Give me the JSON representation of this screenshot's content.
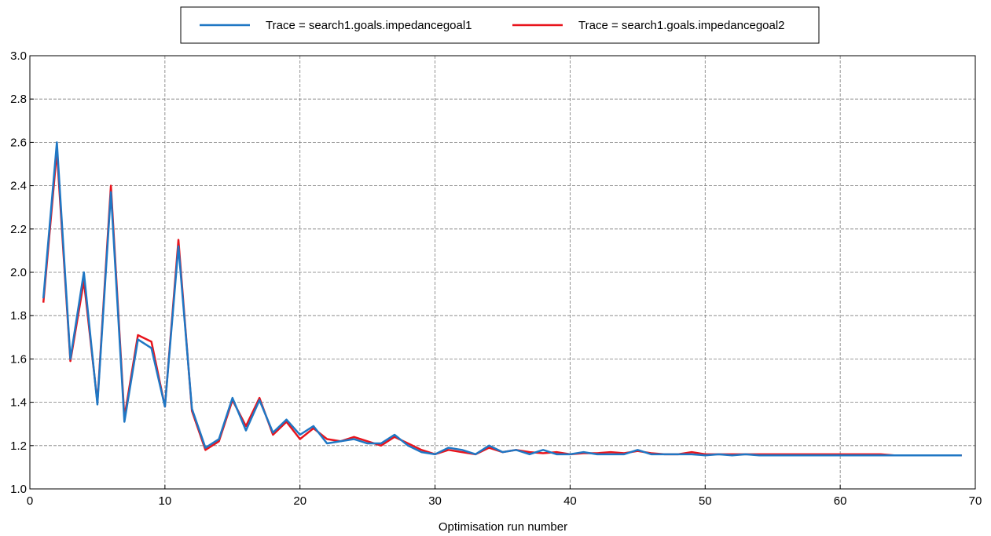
{
  "chart_data": {
    "type": "line",
    "title": "",
    "xlabel": "Optimisation run number",
    "ylabel": "",
    "xlim": [
      0,
      70
    ],
    "ylim": [
      1.0,
      3.0
    ],
    "xticks": [
      0,
      10,
      20,
      30,
      40,
      50,
      60,
      70
    ],
    "yticks": [
      1.0,
      1.2,
      1.4,
      1.6,
      1.8,
      2.0,
      2.2,
      2.4,
      2.6,
      2.8,
      3.0
    ],
    "xtick_labels": [
      "0",
      "10",
      "20",
      "30",
      "40",
      "50",
      "60",
      "70"
    ],
    "ytick_labels": [
      "1.0",
      "1.2",
      "1.4",
      "1.6",
      "1.8",
      "2.0",
      "2.2",
      "2.4",
      "2.6",
      "2.8",
      "3.0"
    ],
    "grid": true,
    "legend_position": "top-center",
    "x": [
      1,
      2,
      3,
      4,
      5,
      6,
      7,
      8,
      9,
      10,
      11,
      12,
      13,
      14,
      15,
      16,
      17,
      18,
      19,
      20,
      21,
      22,
      23,
      24,
      25,
      26,
      27,
      28,
      29,
      30,
      31,
      32,
      33,
      34,
      35,
      36,
      37,
      38,
      39,
      40,
      41,
      42,
      43,
      44,
      45,
      46,
      47,
      48,
      49,
      50,
      51,
      52,
      53,
      54,
      55,
      56,
      57,
      58,
      59,
      60,
      61,
      62,
      63,
      64,
      65,
      66,
      67,
      68,
      69
    ],
    "series": [
      {
        "name": "Trace = search1.goals.impedancegoal1",
        "color": "#1f77c4",
        "values": [
          1.88,
          2.6,
          1.6,
          2.0,
          1.39,
          2.37,
          1.31,
          1.69,
          1.65,
          1.38,
          2.12,
          1.37,
          1.19,
          1.23,
          1.42,
          1.27,
          1.41,
          1.26,
          1.32,
          1.25,
          1.29,
          1.21,
          1.22,
          1.23,
          1.21,
          1.21,
          1.25,
          1.2,
          1.17,
          1.16,
          1.19,
          1.18,
          1.16,
          1.2,
          1.17,
          1.18,
          1.16,
          1.18,
          1.16,
          1.16,
          1.17,
          1.16,
          1.16,
          1.16,
          1.18,
          1.16,
          1.16,
          1.16,
          1.16,
          1.155,
          1.16,
          1.155,
          1.16,
          1.155,
          1.155,
          1.155,
          1.155,
          1.155,
          1.155,
          1.155,
          1.155,
          1.155,
          1.155,
          1.155,
          1.155,
          1.155,
          1.155,
          1.155,
          1.155
        ]
      },
      {
        "name": "Trace = search1.goals.impedancegoal2",
        "color": "#e8141c",
        "values": [
          1.86,
          2.56,
          1.59,
          1.96,
          1.4,
          2.4,
          1.33,
          1.71,
          1.68,
          1.38,
          2.15,
          1.36,
          1.18,
          1.22,
          1.41,
          1.29,
          1.42,
          1.25,
          1.31,
          1.23,
          1.28,
          1.23,
          1.22,
          1.24,
          1.22,
          1.2,
          1.24,
          1.21,
          1.18,
          1.16,
          1.18,
          1.17,
          1.16,
          1.19,
          1.17,
          1.18,
          1.17,
          1.165,
          1.17,
          1.16,
          1.165,
          1.165,
          1.17,
          1.165,
          1.175,
          1.165,
          1.16,
          1.16,
          1.17,
          1.16,
          1.16,
          1.16,
          1.16,
          1.16,
          1.16,
          1.16,
          1.16,
          1.16,
          1.16,
          1.16,
          1.16,
          1.16,
          1.16,
          1.155,
          1.155,
          1.155,
          1.155,
          1.155,
          1.155
        ]
      }
    ]
  }
}
